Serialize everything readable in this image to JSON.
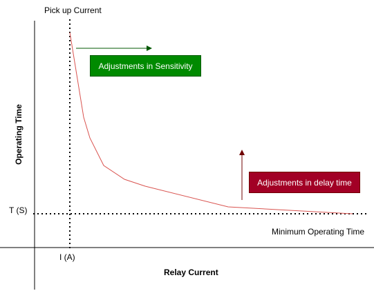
{
  "labels": {
    "pickup": "Pick up Current",
    "y_axis": "Operating Time",
    "t_value": "T (S)",
    "i_value": "I (A)",
    "x_axis": "Relay Current",
    "min_time": "Minimum Operating Time"
  },
  "boxes": {
    "sensitivity": {
      "text": "Adjustments in Sensitivity",
      "fill": "#008a00",
      "arrow_color": "#005700"
    },
    "delay": {
      "text": "Adjustments in delay time",
      "fill": "#a20025",
      "arrow_color": "#6f0000"
    }
  },
  "colors": {
    "curve": "#d9534f",
    "axis": "#000000"
  }
}
